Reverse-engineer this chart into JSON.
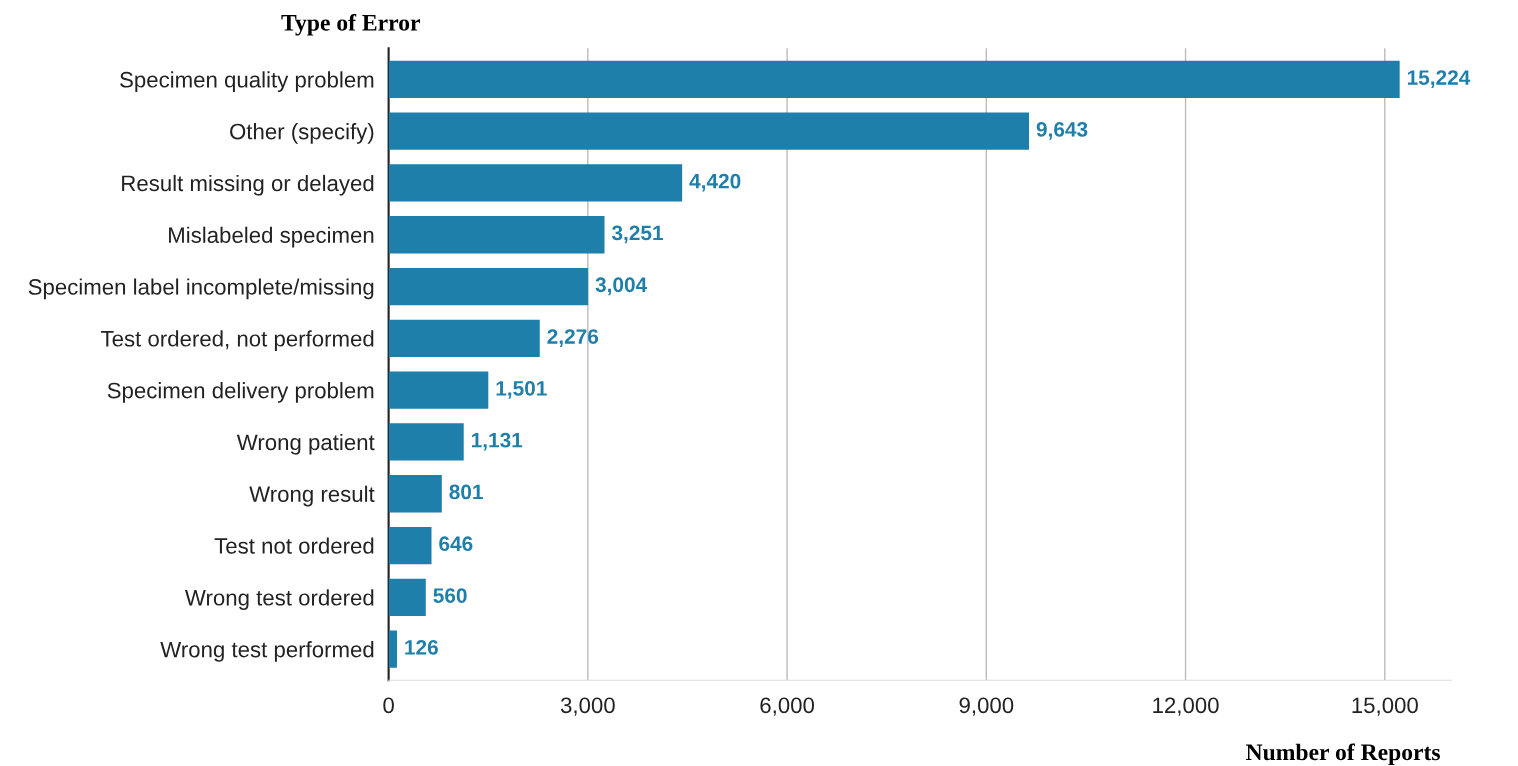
{
  "chart_data": {
    "type": "bar",
    "orientation": "horizontal",
    "ylabel": "Type of Error",
    "xlabel": "Number of Reports",
    "categories": [
      "Specimen quality problem",
      "Other (specify)",
      "Result missing or delayed",
      "Mislabeled specimen",
      "Specimen label incomplete/missing",
      "Test ordered, not performed",
      "Specimen delivery problem",
      "Wrong patient",
      "Wrong result",
      "Test not ordered",
      "Wrong test ordered",
      "Wrong test performed"
    ],
    "values": [
      15224,
      9643,
      4420,
      3251,
      3004,
      2276,
      1501,
      1131,
      801,
      646,
      560,
      126
    ],
    "value_labels": [
      "15,224",
      "9,643",
      "4,420",
      "3,251",
      "3,004",
      "2,276",
      "1,501",
      "1,131",
      "801",
      "646",
      "560",
      "126"
    ],
    "color": "#1f7fab",
    "grid": "x",
    "legend": false,
    "xlim": [
      0,
      16000
    ],
    "xticks": [
      {
        "value": 0,
        "label": "0"
      },
      {
        "value": 3000,
        "label": "3,000"
      },
      {
        "value": 6000,
        "label": "6,000"
      },
      {
        "value": 9000,
        "label": "9,000"
      },
      {
        "value": 12000,
        "label": "12,000"
      },
      {
        "value": 15000,
        "label": "15,000"
      }
    ]
  }
}
